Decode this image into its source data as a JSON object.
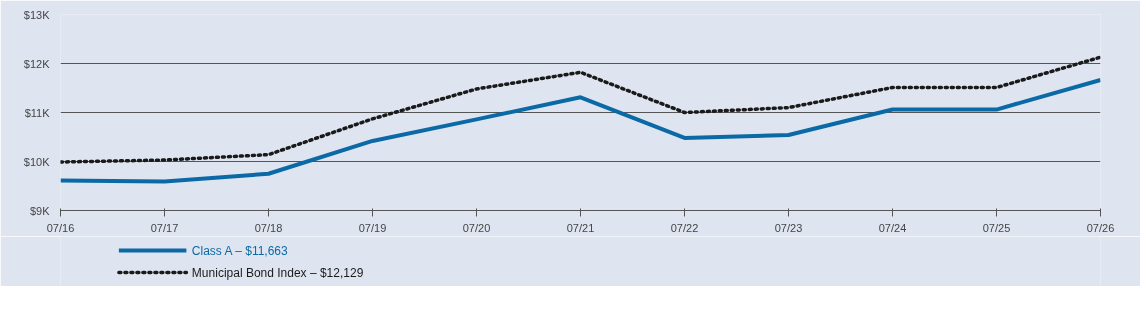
{
  "chart_data": {
    "type": "line",
    "categories": [
      "07/16",
      "07/17",
      "07/18",
      "07/19",
      "07/20",
      "07/21",
      "07/22",
      "07/23",
      "07/24",
      "07/25",
      "07/26"
    ],
    "series": [
      {
        "name": "Class A – $11,663",
        "color": "#0b6aa6",
        "line_style": "solid",
        "values": [
          9610,
          9590,
          9750,
          10420,
          10860,
          11310,
          10480,
          10540,
          11060,
          11060,
          11663
        ]
      },
      {
        "name": "Municipal Bond Index – $12,129",
        "color": "#1a1a1a",
        "line_style": "dotted",
        "values": [
          9990,
          10030,
          10140,
          10870,
          11480,
          11820,
          11000,
          11100,
          11510,
          11510,
          12129
        ]
      }
    ],
    "ylim": [
      9000,
      13000
    ],
    "yticks": [
      {
        "value": 9000,
        "label": "$9K"
      },
      {
        "value": 10000,
        "label": "$10K"
      },
      {
        "value": 11000,
        "label": "$11K"
      },
      {
        "value": 12000,
        "label": "$12K"
      },
      {
        "value": 13000,
        "label": "$13K"
      }
    ],
    "grid": "y",
    "legend": "bottom",
    "marker": "none"
  }
}
